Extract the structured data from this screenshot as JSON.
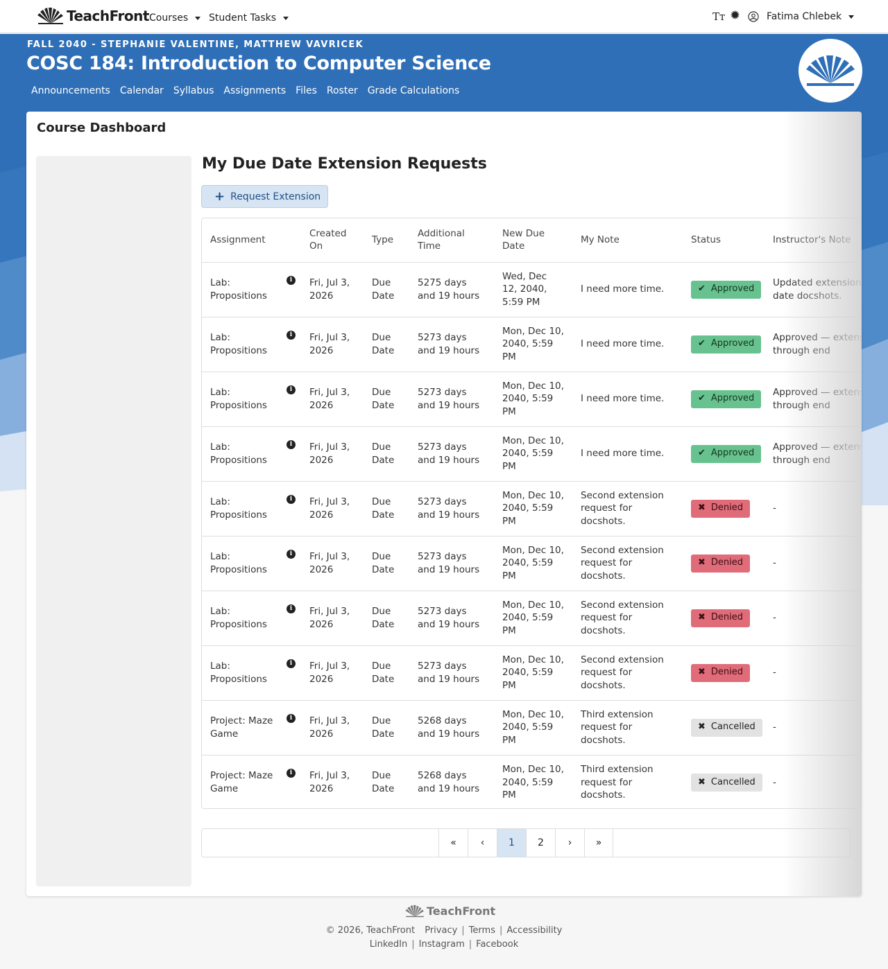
{
  "nav": {
    "brand": "TeachFront",
    "courses_label": "Courses",
    "student_tasks_label": "Student Tasks",
    "user_name": "Fatima Chlebek",
    "font_size_icon": "text-size-icon",
    "theme_icon": "sun-icon",
    "account_icon": "user-circle-icon"
  },
  "banner": {
    "term": "FALL 2040 - STEPHANIE VALENTINE, MATTHEW VAVRICEK",
    "course_title": "COSC 184: Introduction to Computer Science",
    "links": [
      "Announcements",
      "Calendar",
      "Syllabus",
      "Assignments",
      "Files",
      "Roster",
      "Grade Calculations"
    ],
    "color": "#2f6fb7"
  },
  "page": {
    "title": "Course Dashboard",
    "section_title": "My Due Date Extension Requests",
    "request_button": "Request Extension"
  },
  "table": {
    "headers": [
      "Assignment",
      "Created On",
      "Type",
      "Additional Time",
      "New Due Date",
      "My Note",
      "Status",
      "Instructor's Note"
    ],
    "rows": [
      {
        "assignment": "Lab: Propositions",
        "created": "Fri, Jul 3, 2026",
        "type": "Due Date",
        "additional": "5275 days and 19 hours",
        "new_due": "Wed, Dec 12, 2040, 5:59 PM",
        "note": "I need more time.",
        "status": "Approved",
        "instructor_note": "Updated extension; effective due date docshots."
      },
      {
        "assignment": "Lab: Propositions",
        "created": "Fri, Jul 3, 2026",
        "type": "Due Date",
        "additional": "5273 days and 19 hours",
        "new_due": "Mon, Dec 10, 2040, 5:59 PM",
        "note": "I need more time.",
        "status": "Approved",
        "instructor_note": "Approved — extension granted through end"
      },
      {
        "assignment": "Lab: Propositions",
        "created": "Fri, Jul 3, 2026",
        "type": "Due Date",
        "additional": "5273 days and 19 hours",
        "new_due": "Mon, Dec 10, 2040, 5:59 PM",
        "note": "I need more time.",
        "status": "Approved",
        "instructor_note": "Approved — extension granted through end"
      },
      {
        "assignment": "Lab: Propositions",
        "created": "Fri, Jul 3, 2026",
        "type": "Due Date",
        "additional": "5273 days and 19 hours",
        "new_due": "Mon, Dec 10, 2040, 5:59 PM",
        "note": "I need more time.",
        "status": "Approved",
        "instructor_note": "Approved — extension granted through end"
      },
      {
        "assignment": "Lab: Propositions",
        "created": "Fri, Jul 3, 2026",
        "type": "Due Date",
        "additional": "5273 days and 19 hours",
        "new_due": "Mon, Dec 10, 2040, 5:59 PM",
        "note": "Second extension request for docshots.",
        "status": "Denied",
        "instructor_note": "-"
      },
      {
        "assignment": "Lab: Propositions",
        "created": "Fri, Jul 3, 2026",
        "type": "Due Date",
        "additional": "5273 days and 19 hours",
        "new_due": "Mon, Dec 10, 2040, 5:59 PM",
        "note": "Second extension request for docshots.",
        "status": "Denied",
        "instructor_note": "-"
      },
      {
        "assignment": "Lab: Propositions",
        "created": "Fri, Jul 3, 2026",
        "type": "Due Date",
        "additional": "5273 days and 19 hours",
        "new_due": "Mon, Dec 10, 2040, 5:59 PM",
        "note": "Second extension request for docshots.",
        "status": "Denied",
        "instructor_note": "-"
      },
      {
        "assignment": "Lab: Propositions",
        "created": "Fri, Jul 3, 2026",
        "type": "Due Date",
        "additional": "5273 days and 19 hours",
        "new_due": "Mon, Dec 10, 2040, 5:59 PM",
        "note": "Second extension request for docshots.",
        "status": "Denied",
        "instructor_note": "-"
      },
      {
        "assignment": "Project: Maze Game",
        "created": "Fri, Jul 3, 2026",
        "type": "Due Date",
        "additional": "5268 days and 19 hours",
        "new_due": "Mon, Dec 10, 2040, 5:59 PM",
        "note": "Third extension request for docshots.",
        "status": "Cancelled",
        "instructor_note": "-"
      },
      {
        "assignment": "Project: Maze Game",
        "created": "Fri, Jul 3, 2026",
        "type": "Due Date",
        "additional": "5268 days and 19 hours",
        "new_due": "Mon, Dec 10, 2040, 5:59 PM",
        "note": "Third extension request for docshots.",
        "status": "Cancelled",
        "instructor_note": "-"
      }
    ]
  },
  "status_colors": {
    "Approved": "#68c28f",
    "Denied": "#e06c7a",
    "Cancelled": "#e2e2e2"
  },
  "pagination": {
    "first": "«",
    "prev": "‹",
    "pages": [
      "1",
      "2"
    ],
    "current": "1",
    "next": "›",
    "last": "»"
  },
  "footer": {
    "brand": "TeachFront",
    "copyright": "© 2026, TeachFront",
    "links_row1": [
      "Privacy",
      "Terms",
      "Accessibility"
    ],
    "links_row2": [
      "LinkedIn",
      "Instagram",
      "Facebook"
    ]
  }
}
